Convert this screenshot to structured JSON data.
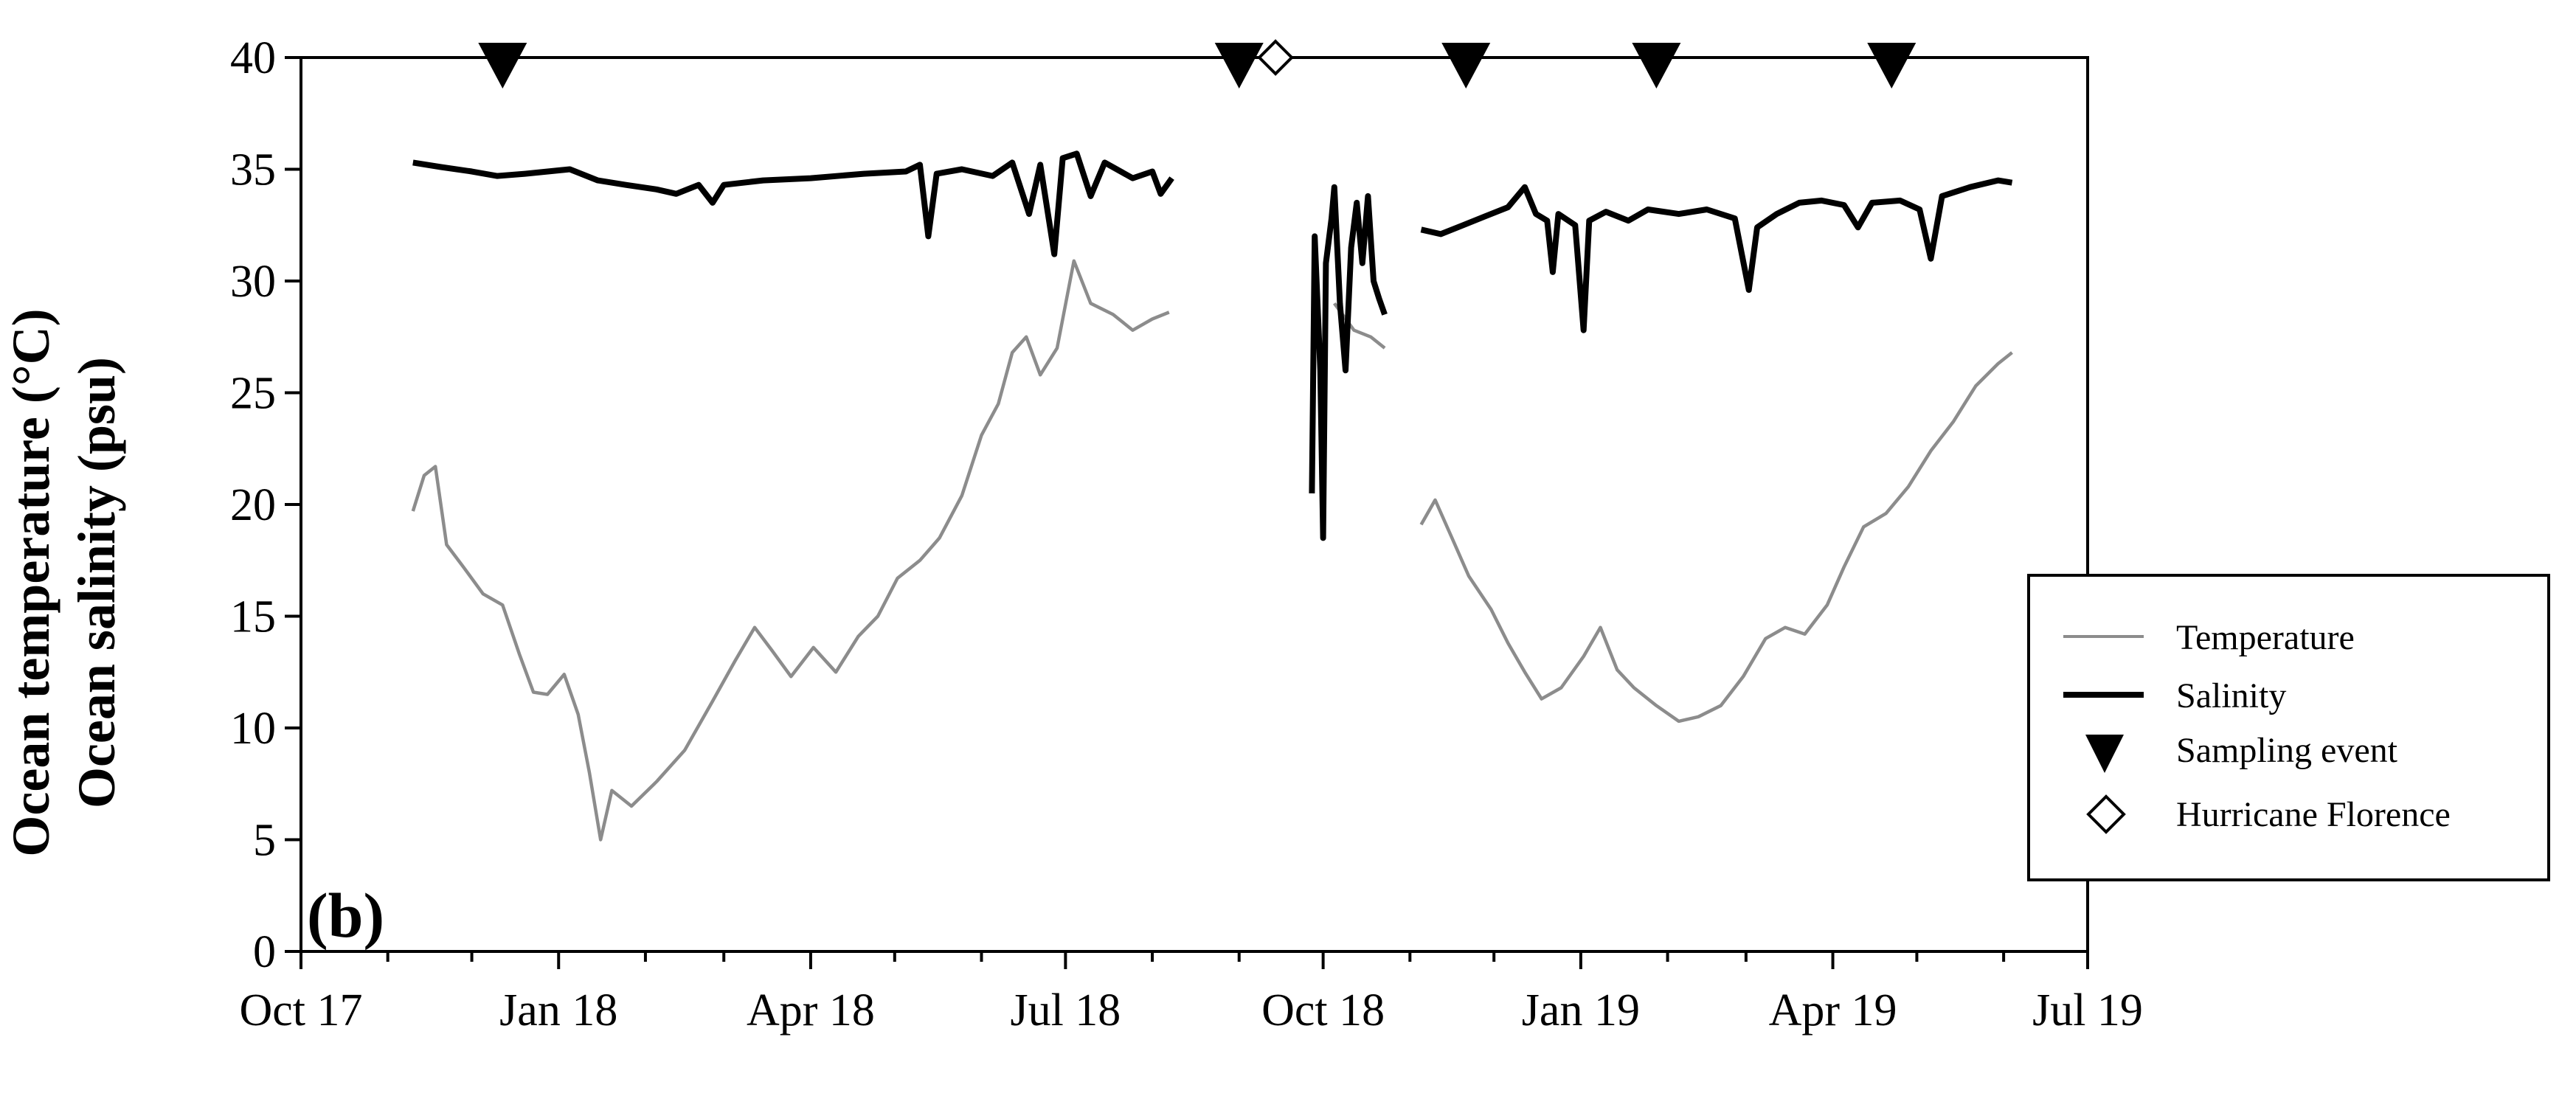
{
  "panel_label": "(b)",
  "chart_data": {
    "type": "line",
    "title": "",
    "ylabel_lines": [
      "Ocean temperature (°C)",
      "Ocean salinity (psu)"
    ],
    "xlabel": "",
    "ylim": [
      0,
      40
    ],
    "yticks": [
      0,
      5,
      10,
      15,
      20,
      25,
      30,
      35,
      40
    ],
    "xlim": [
      "2017-10-01",
      "2019-07-01"
    ],
    "xtick_labels": [
      "Oct 17",
      "Jan 18",
      "Apr 18",
      "Jul 18",
      "Oct 18",
      "Jan 19",
      "Apr 19",
      "Jul 19"
    ],
    "xtick_dates": [
      "2017-10-01",
      "2018-01-01",
      "2018-04-01",
      "2018-07-01",
      "2018-10-01",
      "2019-01-01",
      "2019-04-01",
      "2019-07-01"
    ],
    "grid": false,
    "legend_position": "right",
    "series": [
      {
        "name": "Temperature",
        "color": "#8c8c8c",
        "segments": [
          [
            [
              "2017-11-10",
              19.7
            ],
            [
              "2017-11-14",
              21.3
            ],
            [
              "2017-11-18",
              21.7
            ],
            [
              "2017-11-22",
              18.2
            ],
            [
              "2017-11-28",
              17.2
            ],
            [
              "2017-12-05",
              16.0
            ],
            [
              "2017-12-12",
              15.5
            ],
            [
              "2017-12-18",
              13.3
            ],
            [
              "2017-12-23",
              11.6
            ],
            [
              "2017-12-28",
              11.5
            ],
            [
              "2018-01-03",
              12.4
            ],
            [
              "2018-01-08",
              10.6
            ],
            [
              "2018-01-12",
              8.0
            ],
            [
              "2018-01-16",
              5.0
            ],
            [
              "2018-01-20",
              7.2
            ],
            [
              "2018-01-27",
              6.5
            ],
            [
              "2018-02-05",
              7.6
            ],
            [
              "2018-02-15",
              9.0
            ],
            [
              "2018-02-25",
              11.2
            ],
            [
              "2018-03-05",
              13.0
            ],
            [
              "2018-03-12",
              14.5
            ],
            [
              "2018-03-18",
              13.5
            ],
            [
              "2018-03-25",
              12.3
            ],
            [
              "2018-04-02",
              13.6
            ],
            [
              "2018-04-10",
              12.5
            ],
            [
              "2018-04-18",
              14.1
            ],
            [
              "2018-04-25",
              15.0
            ],
            [
              "2018-05-02",
              16.7
            ],
            [
              "2018-05-10",
              17.5
            ],
            [
              "2018-05-17",
              18.5
            ],
            [
              "2018-05-25",
              20.4
            ],
            [
              "2018-06-01",
              23.1
            ],
            [
              "2018-06-07",
              24.5
            ],
            [
              "2018-06-12",
              26.8
            ],
            [
              "2018-06-17",
              27.5
            ],
            [
              "2018-06-22",
              25.8
            ],
            [
              "2018-06-28",
              27.0
            ],
            [
              "2018-07-04",
              30.9
            ],
            [
              "2018-07-10",
              29.0
            ],
            [
              "2018-07-18",
              28.5
            ],
            [
              "2018-07-25",
              27.8
            ],
            [
              "2018-08-01",
              28.3
            ],
            [
              "2018-08-07",
              28.6
            ]
          ],
          [
            [
              "2018-10-05",
              29.0
            ],
            [
              "2018-10-12",
              27.8
            ],
            [
              "2018-10-18",
              27.5
            ],
            [
              "2018-10-23",
              27.0
            ]
          ],
          [
            [
              "2018-11-05",
              19.1
            ],
            [
              "2018-11-10",
              20.2
            ],
            [
              "2018-11-16",
              18.5
            ],
            [
              "2018-11-22",
              16.8
            ],
            [
              "2018-11-30",
              15.3
            ],
            [
              "2018-12-06",
              13.8
            ],
            [
              "2018-12-12",
              12.5
            ],
            [
              "2018-12-18",
              11.3
            ],
            [
              "2018-12-25",
              11.8
            ],
            [
              "2019-01-02",
              13.2
            ],
            [
              "2019-01-08",
              14.5
            ],
            [
              "2019-01-14",
              12.6
            ],
            [
              "2019-01-20",
              11.8
            ],
            [
              "2019-01-28",
              11.0
            ],
            [
              "2019-02-05",
              10.3
            ],
            [
              "2019-02-12",
              10.5
            ],
            [
              "2019-02-20",
              11.0
            ],
            [
              "2019-02-28",
              12.3
            ],
            [
              "2019-03-08",
              14.0
            ],
            [
              "2019-03-15",
              14.5
            ],
            [
              "2019-03-22",
              14.2
            ],
            [
              "2019-03-30",
              15.5
            ],
            [
              "2019-04-05",
              17.2
            ],
            [
              "2019-04-12",
              19.0
            ],
            [
              "2019-04-20",
              19.6
            ],
            [
              "2019-04-28",
              20.8
            ],
            [
              "2019-05-06",
              22.4
            ],
            [
              "2019-05-14",
              23.7
            ],
            [
              "2019-05-22",
              25.3
            ],
            [
              "2019-05-30",
              26.3
            ],
            [
              "2019-06-04",
              26.8
            ]
          ]
        ]
      },
      {
        "name": "Salinity",
        "color": "#000000",
        "segments": [
          [
            [
              "2017-11-10",
              35.3
            ],
            [
              "2017-11-20",
              35.1
            ],
            [
              "2017-12-01",
              34.9
            ],
            [
              "2017-12-10",
              34.7
            ],
            [
              "2017-12-20",
              34.8
            ],
            [
              "2018-01-05",
              35.0
            ],
            [
              "2018-01-15",
              34.5
            ],
            [
              "2018-01-25",
              34.3
            ],
            [
              "2018-02-05",
              34.1
            ],
            [
              "2018-02-12",
              33.9
            ],
            [
              "2018-02-20",
              34.3
            ],
            [
              "2018-02-25",
              33.5
            ],
            [
              "2018-03-01",
              34.3
            ],
            [
              "2018-03-15",
              34.5
            ],
            [
              "2018-04-01",
              34.6
            ],
            [
              "2018-04-20",
              34.8
            ],
            [
              "2018-05-05",
              34.9
            ],
            [
              "2018-05-10",
              35.2
            ],
            [
              "2018-05-13",
              32.0
            ],
            [
              "2018-05-16",
              34.8
            ],
            [
              "2018-05-25",
              35.0
            ],
            [
              "2018-06-05",
              34.7
            ],
            [
              "2018-06-12",
              35.3
            ],
            [
              "2018-06-18",
              33.0
            ],
            [
              "2018-06-22",
              35.2
            ],
            [
              "2018-06-27",
              31.2
            ],
            [
              "2018-06-30",
              35.5
            ],
            [
              "2018-07-05",
              35.7
            ],
            [
              "2018-07-10",
              33.8
            ],
            [
              "2018-07-15",
              35.3
            ],
            [
              "2018-07-25",
              34.6
            ],
            [
              "2018-08-01",
              34.9
            ],
            [
              "2018-08-04",
              33.9
            ],
            [
              "2018-08-08",
              34.6
            ]
          ],
          [
            [
              "2018-09-27",
              20.5
            ],
            [
              "2018-09-28",
              32.0
            ],
            [
              "2018-09-30",
              26.0
            ],
            [
              "2018-10-01",
              18.5
            ],
            [
              "2018-10-02",
              30.8
            ],
            [
              "2018-10-04",
              32.8
            ],
            [
              "2018-10-05",
              34.2
            ],
            [
              "2018-10-07",
              29.0
            ],
            [
              "2018-10-09",
              26.0
            ],
            [
              "2018-10-11",
              31.5
            ],
            [
              "2018-10-13",
              33.5
            ],
            [
              "2018-10-15",
              30.8
            ],
            [
              "2018-10-17",
              33.8
            ],
            [
              "2018-10-19",
              30.0
            ],
            [
              "2018-10-21",
              29.2
            ],
            [
              "2018-10-23",
              28.5
            ]
          ],
          [
            [
              "2018-11-05",
              32.3
            ],
            [
              "2018-11-12",
              32.1
            ],
            [
              "2018-11-20",
              32.5
            ],
            [
              "2018-11-28",
              32.9
            ],
            [
              "2018-12-06",
              33.3
            ],
            [
              "2018-12-12",
              34.2
            ],
            [
              "2018-12-16",
              33.0
            ],
            [
              "2018-12-20",
              32.7
            ],
            [
              "2018-12-22",
              30.4
            ],
            [
              "2018-12-24",
              33.0
            ],
            [
              "2018-12-30",
              32.5
            ],
            [
              "2019-01-02",
              27.8
            ],
            [
              "2019-01-04",
              32.7
            ],
            [
              "2019-01-10",
              33.1
            ],
            [
              "2019-01-18",
              32.7
            ],
            [
              "2019-01-25",
              33.2
            ],
            [
              "2019-02-05",
              33.0
            ],
            [
              "2019-02-15",
              33.2
            ],
            [
              "2019-02-25",
              32.8
            ],
            [
              "2019-03-02",
              29.6
            ],
            [
              "2019-03-05",
              32.4
            ],
            [
              "2019-03-12",
              33.0
            ],
            [
              "2019-03-20",
              33.5
            ],
            [
              "2019-03-28",
              33.6
            ],
            [
              "2019-04-05",
              33.4
            ],
            [
              "2019-04-10",
              32.4
            ],
            [
              "2019-04-15",
              33.5
            ],
            [
              "2019-04-25",
              33.6
            ],
            [
              "2019-05-02",
              33.2
            ],
            [
              "2019-05-06",
              31.0
            ],
            [
              "2019-05-10",
              33.8
            ],
            [
              "2019-05-20",
              34.2
            ],
            [
              "2019-05-30",
              34.5
            ],
            [
              "2019-06-04",
              34.4
            ]
          ]
        ]
      }
    ],
    "markers": [
      {
        "name": "Sampling event",
        "symbol": "filled-down-triangle",
        "color": "#000000",
        "y": 40,
        "dates": [
          "2017-12-12",
          "2018-09-01",
          "2018-11-21",
          "2019-01-28",
          "2019-04-22"
        ]
      },
      {
        "name": "Hurricane Florence",
        "symbol": "open-diamond",
        "color": "#000000",
        "y": 40,
        "dates": [
          "2018-09-14"
        ]
      }
    ],
    "legend": [
      {
        "label": "Temperature",
        "symbol": "line-gray"
      },
      {
        "label": "Salinity",
        "symbol": "line-black"
      },
      {
        "label": "Sampling event",
        "symbol": "filled-down-triangle"
      },
      {
        "label": "Hurricane Florence",
        "symbol": "open-diamond"
      }
    ]
  }
}
